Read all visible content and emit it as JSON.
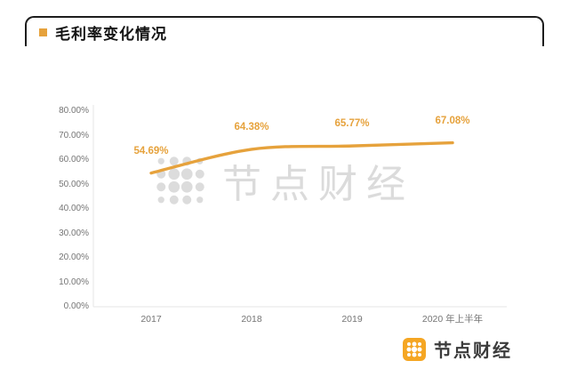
{
  "header": {
    "title": "毛利率变化情况"
  },
  "watermark": {
    "text": "节点财经"
  },
  "brand": {
    "name": "节点财经"
  },
  "colors": {
    "accent": "#E6A23C",
    "logo": "#F5A623",
    "watermark": "#DBDBDB",
    "axis_text": "#757575",
    "frame": "#1D1D1D"
  },
  "chart_data": {
    "type": "line",
    "title": "毛利率变化情况",
    "categories": [
      "2017",
      "2018",
      "2019",
      "2020 年上半年"
    ],
    "values": [
      54.69,
      64.38,
      65.77,
      67.08
    ],
    "labels": [
      "54.69%",
      "64.38%",
      "65.77%",
      "67.08%"
    ],
    "y_ticks": [
      0,
      10,
      20,
      30,
      40,
      50,
      60,
      70,
      80
    ],
    "y_tick_labels": [
      "0.00%",
      "10.00%",
      "20.00%",
      "30.00%",
      "40.00%",
      "50.00%",
      "60.00%",
      "70.00%",
      "80.00%"
    ],
    "ylim": [
      0,
      80
    ],
    "xlabel": "",
    "ylabel": "",
    "grid": false,
    "legend": "none",
    "line_color": "#E6A23C"
  }
}
